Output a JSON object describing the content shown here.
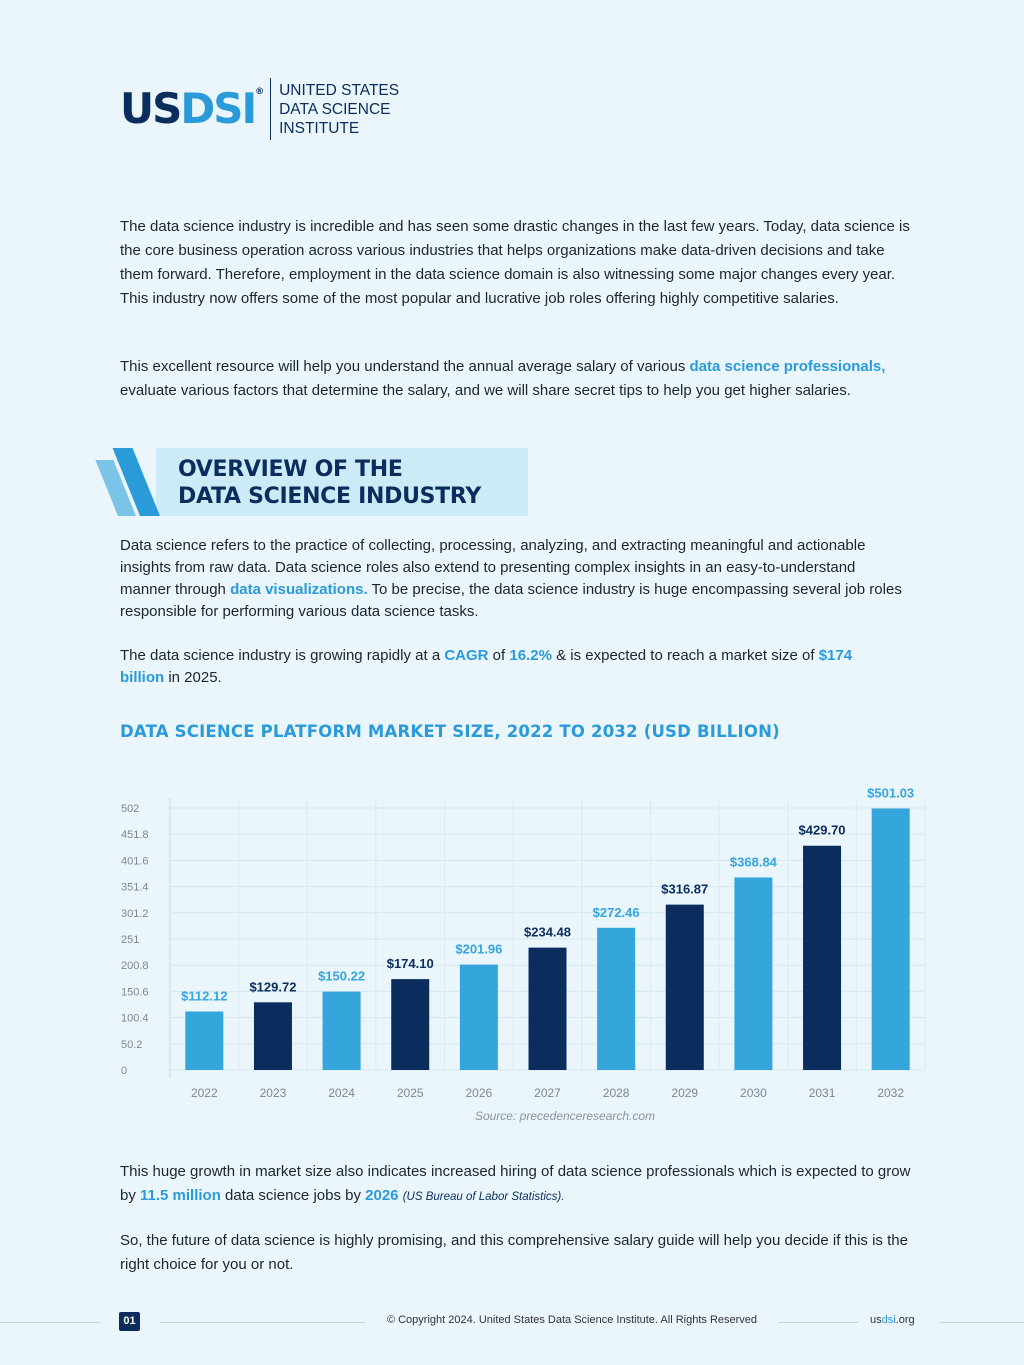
{
  "logo": {
    "mark_us": "US",
    "mark_dsi": "DSI",
    "registered": "®",
    "line1": "UNITED STATES",
    "line2": "DATA SCIENCE",
    "line3": "INSTITUTE"
  },
  "intro": {
    "p1": "The data science industry is incredible and has seen some drastic changes in the last few years. Today, data science is the core business operation across various industries that helps organizations make data-driven decisions and take them forward. Therefore, employment in the data science domain is also witnessing some major changes every year. This industry now offers some of the most popular and lucrative job roles offering highly competitive salaries.",
    "p2_before": "This excellent resource will help you understand the annual average salary of various ",
    "p2_link": "data science professionals,",
    "p2_after": " evaluate various factors that determine the salary, and we will share secret tips to help you get higher salaries."
  },
  "section": {
    "title_line1": "OVERVIEW OF THE",
    "title_line2": "DATA SCIENCE INDUSTRY"
  },
  "overview": {
    "p1_before": "Data science refers to the practice of collecting, processing, analyzing, and extracting meaningful and actionable insights from raw data. Data science roles also extend to presenting complex insights in an easy-to-understand manner through ",
    "p1_link": "data visualizations.",
    "p1_after": " To be precise, the data science industry is huge encompassing several job roles responsible for performing various data science tasks.",
    "p2_a": "The data science industry is growing rapidly at a ",
    "p2_cagr": "CAGR",
    "p2_b": " of ",
    "p2_rate": "16.2%",
    "p2_c": " & is expected to reach a market size of ",
    "p2_size": "$174 billion",
    "p2_d": " in 2025."
  },
  "chart_data": {
    "type": "bar",
    "title": "DATA SCIENCE PLATFORM MARKET SIZE, 2022 TO 2032 (USD BILLION)",
    "categories": [
      "2022",
      "2023",
      "2024",
      "2025",
      "2026",
      "2027",
      "2028",
      "2029",
      "2030",
      "2031",
      "2032"
    ],
    "values": [
      112.12,
      129.72,
      150.22,
      174.1,
      201.96,
      234.48,
      272.46,
      316.87,
      368.84,
      429.7,
      501.03
    ],
    "data_labels": [
      "$112.12",
      "$129.72",
      "$150.22",
      "$174.10",
      "$201.96",
      "$234.48",
      "$272.46",
      "$316.87",
      "$368.84",
      "$429.70",
      "$501.03"
    ],
    "y_ticks": [
      "0",
      "50.2",
      "100.4",
      "150.6",
      "200.8",
      "251",
      "301.2",
      "351.4",
      "401.6",
      "451.8",
      "502"
    ],
    "ylim": [
      0,
      502
    ],
    "grid": true,
    "legend": "none",
    "colors": {
      "light": "#34a6dc",
      "dark": "#0a2d5e"
    },
    "source": "Source: precedenceresearch.com"
  },
  "growth": {
    "p1_a": "This huge growth in market size also indicates increased hiring of data science professionals which is expected to grow by ",
    "p1_jobs": "11.5 million",
    "p1_b": " data science jobs by ",
    "p1_year": "2026",
    "p1_c": " ",
    "p1_cite": "(US Bureau of Labor Statistics).",
    "p2": "So, the future of data science is highly promising, and this comprehensive salary guide will help you decide if this is the right choice for you or not."
  },
  "footer": {
    "page": "01",
    "copyright": "© Copyright 2024. United States Data Science Institute. All Rights Reserved",
    "site_a": "us",
    "site_b": "dsi",
    "site_c": ".org"
  }
}
